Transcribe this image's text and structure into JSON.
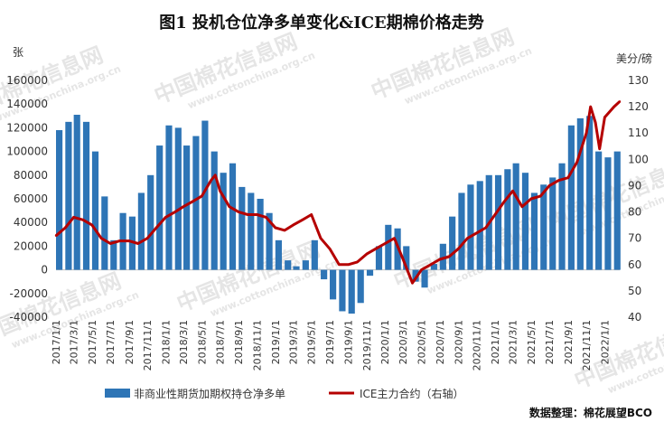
{
  "title": "图1  投机仓位净多单变化&ICE期棉价格走势",
  "source": "数据整理：棉花展望BCO",
  "watermark": "中国棉花信息网",
  "watermark_url": "www.cottonchina.org.cn",
  "colors": {
    "bars": "#2E75B6",
    "line": "#B50000"
  },
  "chart_data": {
    "type": "bar+line",
    "x_ticks": [
      "2017/1/1",
      "2017/3/1",
      "2017/5/1",
      "2017/7/1",
      "2017/9/1",
      "2017/11/1",
      "2018/1/1",
      "2018/3/1",
      "2018/5/1",
      "2018/7/1",
      "2018/9/1",
      "2018/11/1",
      "2019/1/1",
      "2019/3/1",
      "2019/5/1",
      "2019/7/1",
      "2019/9/1",
      "2019/11/1",
      "2020/1/1",
      "2020/3/1",
      "2020/5/1",
      "2020/7/1",
      "2020/9/1",
      "2020/11/1",
      "2021/1/1",
      "2021/3/1",
      "2021/5/1",
      "2021/7/1",
      "2021/9/1",
      "2021/11/1",
      "2022/1/1"
    ],
    "x_range": [
      "2017-01-01",
      "2022-02-20"
    ],
    "y_left": {
      "label": "张",
      "range": [
        -40000,
        160000
      ],
      "ticks": [
        -40000,
        -20000,
        0,
        20000,
        40000,
        60000,
        80000,
        100000,
        120000,
        140000,
        160000
      ]
    },
    "y_right": {
      "label": "美分/磅",
      "range": [
        40,
        130
      ],
      "ticks": [
        40,
        50,
        60,
        70,
        80,
        90,
        100,
        110,
        120,
        130
      ]
    },
    "legend": {
      "position": "bottom",
      "entries": [
        "非商业性期货加期权持仓净多单",
        "ICE主力合约（右轴）"
      ]
    },
    "bars_series": {
      "name": "非商业性期货加期权持仓净多单",
      "x": [
        "2017-01-01",
        "2017-02-01",
        "2017-03-01",
        "2017-04-01",
        "2017-05-01",
        "2017-06-01",
        "2017-07-01",
        "2017-08-01",
        "2017-09-01",
        "2017-10-01",
        "2017-11-01",
        "2017-12-01",
        "2018-01-01",
        "2018-02-01",
        "2018-03-01",
        "2018-04-01",
        "2018-05-01",
        "2018-06-01",
        "2018-07-01",
        "2018-08-01",
        "2018-09-01",
        "2018-10-01",
        "2018-11-01",
        "2018-12-01",
        "2019-01-01",
        "2019-02-01",
        "2019-03-01",
        "2019-04-01",
        "2019-05-01",
        "2019-06-01",
        "2019-07-01",
        "2019-08-01",
        "2019-09-01",
        "2019-10-01",
        "2019-11-01",
        "2019-12-01",
        "2020-01-01",
        "2020-02-01",
        "2020-03-01",
        "2020-04-01",
        "2020-05-01",
        "2020-06-01",
        "2020-07-01",
        "2020-08-01",
        "2020-09-01",
        "2020-10-01",
        "2020-11-01",
        "2020-12-01",
        "2021-01-01",
        "2021-02-01",
        "2021-03-01",
        "2021-04-01",
        "2021-05-01",
        "2021-06-01",
        "2021-07-01",
        "2021-08-01",
        "2021-09-01",
        "2021-10-01",
        "2021-11-01",
        "2021-12-01",
        "2022-01-01",
        "2022-02-01"
      ],
      "values": [
        118000,
        125000,
        131000,
        125000,
        100000,
        62000,
        25000,
        48000,
        45000,
        65000,
        80000,
        105000,
        122000,
        120000,
        105000,
        113000,
        126000,
        100000,
        82000,
        90000,
        70000,
        65000,
        60000,
        48000,
        25000,
        8000,
        3000,
        8000,
        25000,
        -8000,
        -25000,
        -35000,
        -37000,
        -28000,
        -5000,
        20000,
        38000,
        35000,
        20000,
        -10000,
        -15000,
        5000,
        22000,
        45000,
        65000,
        72000,
        75000,
        80000,
        80000,
        85000,
        90000,
        82000,
        65000,
        72000,
        78000,
        90000,
        122000,
        128000,
        130000,
        100000,
        95000,
        100000
      ]
    },
    "line_series": {
      "name": "ICE主力合约（右轴）",
      "x": [
        "2017-01-01",
        "2017-02-01",
        "2017-03-01",
        "2017-04-01",
        "2017-05-01",
        "2017-06-01",
        "2017-07-01",
        "2017-08-01",
        "2017-09-01",
        "2017-10-01",
        "2017-11-01",
        "2017-12-01",
        "2018-01-01",
        "2018-02-01",
        "2018-03-01",
        "2018-04-01",
        "2018-05-01",
        "2018-06-01",
        "2018-06-15",
        "2018-07-01",
        "2018-08-01",
        "2018-09-01",
        "2018-10-01",
        "2018-11-01",
        "2018-12-01",
        "2019-01-01",
        "2019-02-01",
        "2019-03-01",
        "2019-04-01",
        "2019-05-01",
        "2019-06-01",
        "2019-07-01",
        "2019-08-01",
        "2019-09-01",
        "2019-10-01",
        "2019-11-01",
        "2019-12-01",
        "2020-01-01",
        "2020-02-01",
        "2020-03-01",
        "2020-04-01",
        "2020-05-01",
        "2020-06-01",
        "2020-07-01",
        "2020-08-01",
        "2020-09-01",
        "2020-10-01",
        "2020-11-01",
        "2020-12-01",
        "2021-01-01",
        "2021-02-01",
        "2021-03-01",
        "2021-04-01",
        "2021-05-01",
        "2021-06-01",
        "2021-07-01",
        "2021-08-01",
        "2021-09-01",
        "2021-10-01",
        "2021-10-15",
        "2021-11-01",
        "2021-11-15",
        "2021-12-01",
        "2021-12-15",
        "2022-01-01",
        "2022-02-01",
        "2022-02-20"
      ],
      "values": [
        71,
        74,
        78,
        77,
        75,
        70,
        68,
        69,
        69,
        68,
        70,
        74,
        78,
        80,
        82,
        84,
        86,
        92,
        94,
        88,
        82,
        80,
        79,
        79,
        78,
        74,
        73,
        75,
        77,
        79,
        70,
        66,
        60,
        60,
        61,
        64,
        66,
        68,
        70,
        62,
        53,
        58,
        60,
        62,
        63,
        66,
        70,
        72,
        74,
        79,
        84,
        88,
        82,
        85,
        86,
        90,
        92,
        93,
        99,
        104,
        110,
        120,
        114,
        104,
        116,
        120,
        122
      ]
    }
  }
}
